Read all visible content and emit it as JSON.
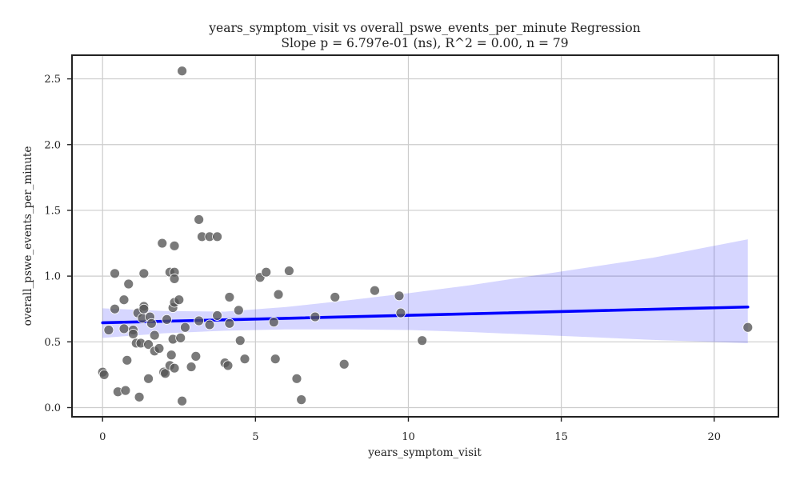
{
  "chart_data": {
    "type": "scatter",
    "title": "years_symptom_visit vs overall_pswe_events_per_minute Regression",
    "subtitle": "Slope p = 6.797e-01 (ns), R^2 = 0.00, n = 79",
    "xlabel": "years_symptom_visit",
    "ylabel": "overall_pswe_events_per_minute",
    "xlim": [
      -1.0,
      22.1
    ],
    "ylim": [
      -0.07,
      2.68
    ],
    "xticks": [
      0,
      5,
      10,
      15,
      20
    ],
    "xtick_labels": [
      "0",
      "5",
      "10",
      "15",
      "20"
    ],
    "yticks": [
      0.0,
      0.5,
      1.0,
      1.5,
      2.0,
      2.5
    ],
    "ytick_labels": [
      "0.0",
      "0.5",
      "1.0",
      "1.5",
      "2.0",
      "2.5"
    ],
    "grid": true,
    "legend": false,
    "colors": {
      "points": "#555555",
      "regression": "#0000ff",
      "band": "#0000ff"
    },
    "regression": {
      "x": [
        0.0,
        21.1
      ],
      "y": [
        0.645,
        0.765
      ],
      "ci_x": [
        0.0,
        2.0,
        4.0,
        6.0,
        8.0,
        10.0,
        12.0,
        14.0,
        16.0,
        18.0,
        21.1
      ],
      "ci_upper": [
        0.755,
        0.735,
        0.73,
        0.765,
        0.815,
        0.87,
        0.93,
        1.0,
        1.07,
        1.14,
        1.28
      ],
      "ci_lower": [
        0.53,
        0.565,
        0.585,
        0.595,
        0.595,
        0.59,
        0.575,
        0.555,
        0.535,
        0.515,
        0.49
      ]
    },
    "points": [
      {
        "x": 0.0,
        "y": 0.27
      },
      {
        "x": 0.05,
        "y": 0.25
      },
      {
        "x": 0.2,
        "y": 0.59
      },
      {
        "x": 0.4,
        "y": 1.02
      },
      {
        "x": 0.4,
        "y": 0.75
      },
      {
        "x": 0.5,
        "y": 0.12
      },
      {
        "x": 0.7,
        "y": 0.82
      },
      {
        "x": 0.7,
        "y": 0.6
      },
      {
        "x": 0.75,
        "y": 0.13
      },
      {
        "x": 0.8,
        "y": 0.36
      },
      {
        "x": 0.85,
        "y": 0.94
      },
      {
        "x": 1.0,
        "y": 0.59
      },
      {
        "x": 1.0,
        "y": 0.56
      },
      {
        "x": 1.1,
        "y": 0.49
      },
      {
        "x": 1.15,
        "y": 0.72
      },
      {
        "x": 1.2,
        "y": 0.08
      },
      {
        "x": 1.25,
        "y": 0.49
      },
      {
        "x": 1.3,
        "y": 0.68
      },
      {
        "x": 1.35,
        "y": 1.02
      },
      {
        "x": 1.35,
        "y": 0.77
      },
      {
        "x": 1.35,
        "y": 0.75
      },
      {
        "x": 1.5,
        "y": 0.48
      },
      {
        "x": 1.5,
        "y": 0.22
      },
      {
        "x": 1.55,
        "y": 0.69
      },
      {
        "x": 1.6,
        "y": 0.64
      },
      {
        "x": 1.7,
        "y": 0.55
      },
      {
        "x": 1.7,
        "y": 0.43
      },
      {
        "x": 1.85,
        "y": 0.45
      },
      {
        "x": 1.95,
        "y": 1.25
      },
      {
        "x": 2.0,
        "y": 0.27
      },
      {
        "x": 2.05,
        "y": 0.26
      },
      {
        "x": 2.1,
        "y": 0.67
      },
      {
        "x": 2.2,
        "y": 1.03
      },
      {
        "x": 2.2,
        "y": 0.32
      },
      {
        "x": 2.25,
        "y": 0.4
      },
      {
        "x": 2.3,
        "y": 0.76
      },
      {
        "x": 2.3,
        "y": 0.52
      },
      {
        "x": 2.35,
        "y": 1.23
      },
      {
        "x": 2.35,
        "y": 1.03
      },
      {
        "x": 2.35,
        "y": 0.98
      },
      {
        "x": 2.35,
        "y": 0.8
      },
      {
        "x": 2.35,
        "y": 0.3
      },
      {
        "x": 2.5,
        "y": 0.82
      },
      {
        "x": 2.55,
        "y": 0.53
      },
      {
        "x": 2.6,
        "y": 2.56
      },
      {
        "x": 2.6,
        "y": 0.05
      },
      {
        "x": 2.7,
        "y": 0.61
      },
      {
        "x": 2.9,
        "y": 0.31
      },
      {
        "x": 3.05,
        "y": 0.39
      },
      {
        "x": 3.15,
        "y": 1.43
      },
      {
        "x": 3.15,
        "y": 0.66
      },
      {
        "x": 3.25,
        "y": 1.3
      },
      {
        "x": 3.5,
        "y": 1.3
      },
      {
        "x": 3.5,
        "y": 0.63
      },
      {
        "x": 3.75,
        "y": 1.3
      },
      {
        "x": 3.75,
        "y": 0.7
      },
      {
        "x": 4.0,
        "y": 0.34
      },
      {
        "x": 4.1,
        "y": 0.32
      },
      {
        "x": 4.15,
        "y": 0.84
      },
      {
        "x": 4.15,
        "y": 0.64
      },
      {
        "x": 4.45,
        "y": 0.74
      },
      {
        "x": 4.5,
        "y": 0.51
      },
      {
        "x": 4.65,
        "y": 0.37
      },
      {
        "x": 5.15,
        "y": 0.99
      },
      {
        "x": 5.35,
        "y": 1.03
      },
      {
        "x": 5.6,
        "y": 0.65
      },
      {
        "x": 5.65,
        "y": 0.37
      },
      {
        "x": 5.75,
        "y": 0.86
      },
      {
        "x": 6.1,
        "y": 1.04
      },
      {
        "x": 6.35,
        "y": 0.22
      },
      {
        "x": 6.5,
        "y": 0.06
      },
      {
        "x": 6.95,
        "y": 0.69
      },
      {
        "x": 7.6,
        "y": 0.84
      },
      {
        "x": 7.9,
        "y": 0.33
      },
      {
        "x": 8.9,
        "y": 0.89
      },
      {
        "x": 9.7,
        "y": 0.85
      },
      {
        "x": 9.75,
        "y": 0.72
      },
      {
        "x": 10.45,
        "y": 0.51
      },
      {
        "x": 21.1,
        "y": 0.61
      }
    ]
  }
}
